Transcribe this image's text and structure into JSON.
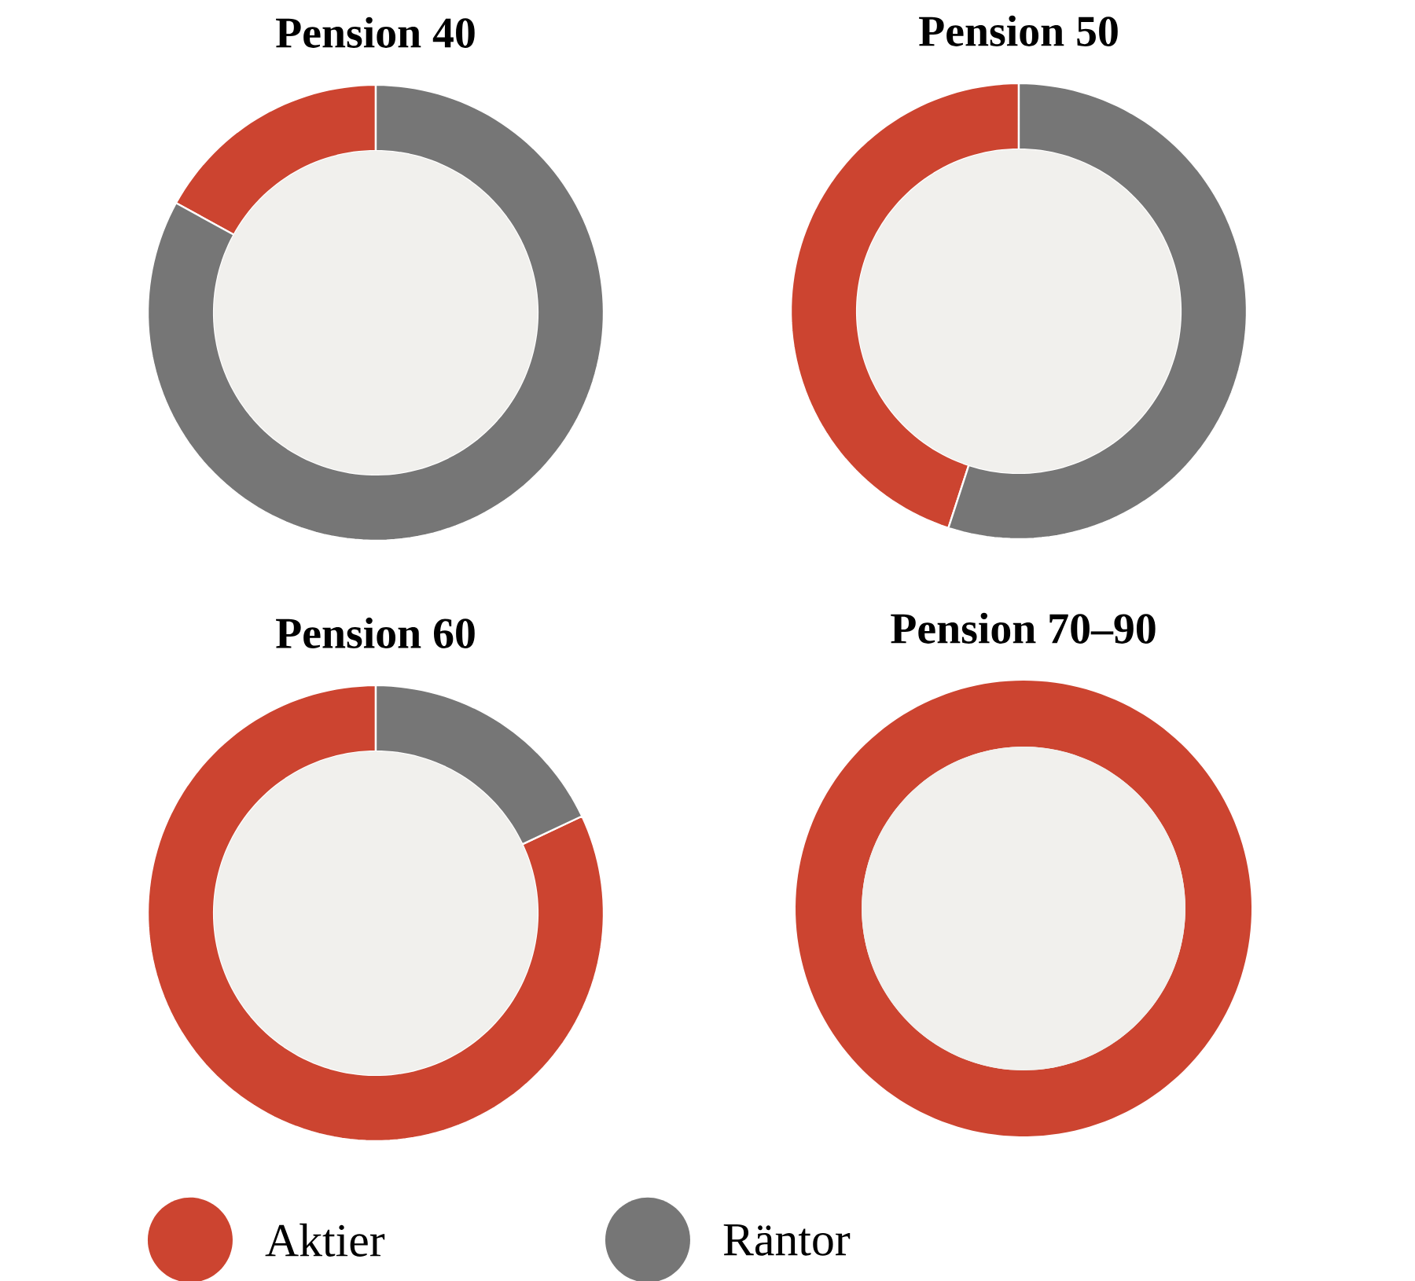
{
  "chart_data": [
    {
      "type": "donut",
      "title": "Pension 40",
      "categories": [
        null,
        null
      ],
      "values": [
        17,
        83
      ],
      "colors": [
        "#cc4430",
        "#767676"
      ]
    },
    {
      "type": "donut",
      "title": "Pension 50",
      "categories": [
        null,
        null
      ],
      "values": [
        45,
        55
      ],
      "colors": [
        "#cc4430",
        "#767676"
      ]
    },
    {
      "type": "donut",
      "title": "Pension 60",
      "categories": [
        "Aktier",
        "Räntor"
      ],
      "values": [
        82,
        18
      ],
      "colors": [
        "#cc4430",
        "#767676"
      ],
      "legend": "bottom"
    },
    {
      "type": "donut",
      "title": "Pension 70–90",
      "categories": [
        null,
        null
      ],
      "values": [
        100,
        0
      ],
      "colors": [
        "#cc4430",
        "#767676"
      ]
    }
  ]
}
